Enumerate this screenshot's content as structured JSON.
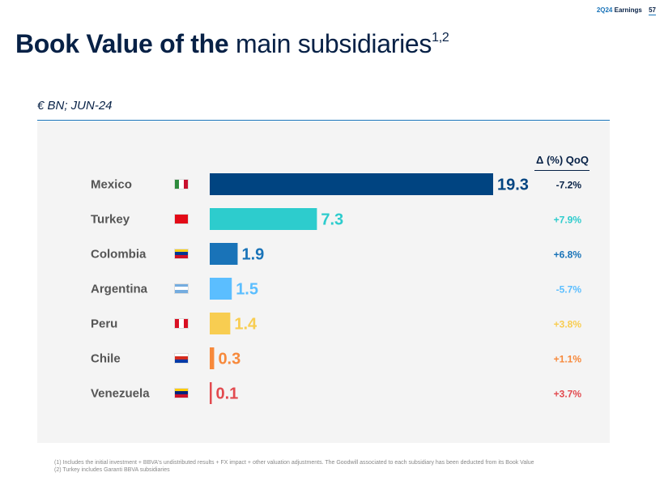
{
  "header": {
    "report_label": "2Q24",
    "report_label2": "Earnings",
    "page_number": "57"
  },
  "title": {
    "bold_part": "Book Value of the",
    "regular_part": "main subsidiaries",
    "superscript": "1,2"
  },
  "unit_label": "€ BN; JUN-24",
  "delta_header": "Δ (%) QoQ",
  "chart_data": {
    "type": "bar",
    "orientation": "horizontal",
    "categories": [
      "Mexico",
      "Turkey",
      "Colombia",
      "Argentina",
      "Peru",
      "Chile",
      "Venezuela"
    ],
    "values": [
      19.3,
      7.3,
      1.9,
      1.5,
      1.4,
      0.3,
      0.1
    ],
    "value_labels": [
      "19.3",
      "7.3",
      "1.9",
      "1.5",
      "1.4",
      "0.3",
      "0.1"
    ],
    "deltas": [
      "-7.2%",
      "+7.9%",
      "+6.8%",
      "-5.7%",
      "+3.8%",
      "+1.1%",
      "+3.7%"
    ],
    "colors": [
      "#004481",
      "#2dcccd",
      "#1973b8",
      "#5bbeff",
      "#f8cd51",
      "#f7893b",
      "#e24a4f"
    ],
    "xlim": [
      0,
      19.3
    ]
  },
  "flags": [
    [
      "#2e8b3d",
      "#ffffff",
      "#c8102e"
    ],
    [
      "#e30a17",
      "#e30a17",
      "#e30a17"
    ],
    [
      "#fcd116",
      "#003893",
      "#ce1126"
    ],
    [
      "#74acdf",
      "#ffffff",
      "#74acdf"
    ],
    [
      "#d91023",
      "#ffffff",
      "#d91023"
    ],
    [
      "#ffffff",
      "#d52b1e",
      "#0039a6"
    ],
    [
      "#ffcc00",
      "#00247d",
      "#cf142b"
    ]
  ],
  "footnotes": [
    "(1) Includes the initial investment + BBVA's undistributed results + FX impact + other valuation adjustments. The Goodwill associated to each subsidiary has been deducted from its Book Value",
    "(2) Turkey includes Garanti BBVA subsidiaries"
  ]
}
